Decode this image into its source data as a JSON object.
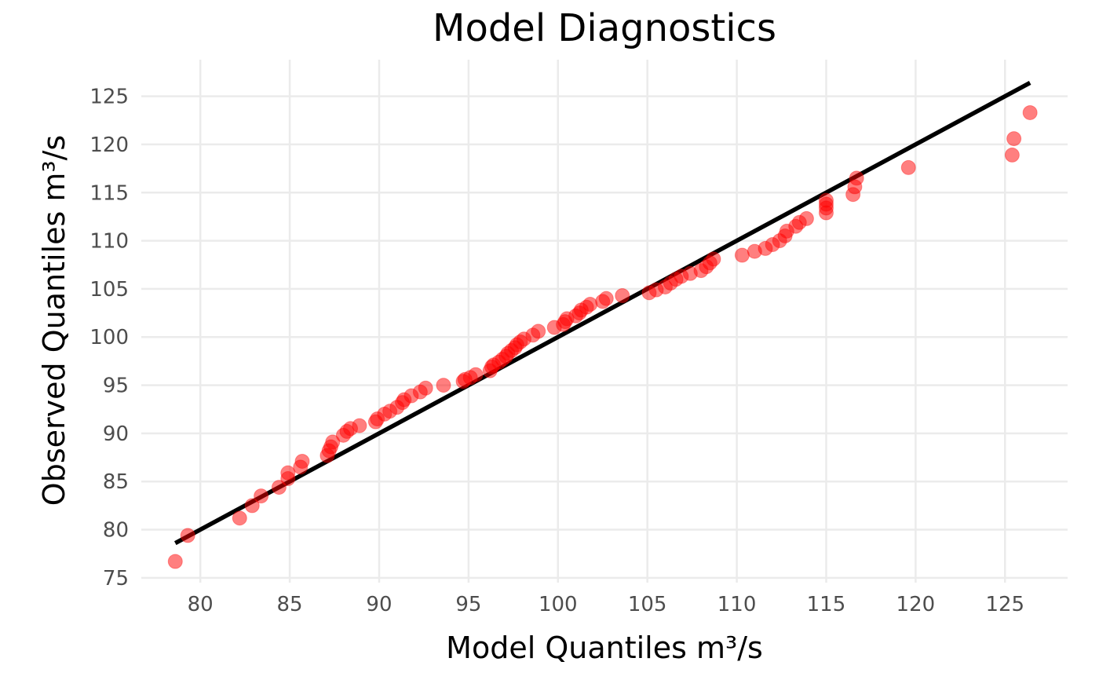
{
  "chart_data": {
    "type": "scatter",
    "title": "Model Diagnostics",
    "xlabel": "Model Quantiles m³/s",
    "ylabel": "Observed Quantiles m³/s",
    "xlim": [
      76.7,
      128.5
    ],
    "ylim": [
      74.5,
      128.8
    ],
    "xticks": [
      80,
      85,
      90,
      95,
      100,
      105,
      110,
      115,
      120,
      125
    ],
    "yticks": [
      75,
      80,
      85,
      90,
      95,
      100,
      105,
      110,
      115,
      120,
      125
    ],
    "grid": true,
    "legend": "none",
    "colors": {
      "points": "#ff0000",
      "reference_line": "#000000",
      "grid": "#ebebeb"
    },
    "reference_line": {
      "x": [
        78.6,
        126.4
      ],
      "y": [
        78.6,
        126.4
      ]
    },
    "points": [
      [
        78.6,
        76.7
      ],
      [
        79.3,
        79.4
      ],
      [
        82.2,
        81.2
      ],
      [
        82.9,
        82.5
      ],
      [
        83.4,
        83.5
      ],
      [
        84.4,
        84.4
      ],
      [
        84.9,
        85.3
      ],
      [
        84.9,
        85.9
      ],
      [
        85.6,
        86.5
      ],
      [
        85.7,
        87.1
      ],
      [
        87.1,
        87.7
      ],
      [
        87.2,
        88.2
      ],
      [
        87.3,
        88.6
      ],
      [
        87.4,
        89.1
      ],
      [
        88.0,
        89.8
      ],
      [
        88.2,
        90.2
      ],
      [
        88.4,
        90.5
      ],
      [
        88.9,
        90.8
      ],
      [
        89.8,
        91.2
      ],
      [
        89.9,
        91.5
      ],
      [
        90.3,
        92.0
      ],
      [
        90.6,
        92.3
      ],
      [
        91.0,
        92.7
      ],
      [
        91.3,
        93.2
      ],
      [
        91.4,
        93.5
      ],
      [
        91.8,
        93.9
      ],
      [
        92.3,
        94.3
      ],
      [
        92.6,
        94.7
      ],
      [
        93.6,
        95.0
      ],
      [
        94.7,
        95.4
      ],
      [
        94.8,
        95.6
      ],
      [
        95.1,
        95.8
      ],
      [
        95.4,
        96.1
      ],
      [
        96.2,
        96.5
      ],
      [
        96.3,
        96.9
      ],
      [
        96.4,
        97.1
      ],
      [
        96.7,
        97.4
      ],
      [
        96.9,
        97.7
      ],
      [
        97.1,
        98.0
      ],
      [
        97.2,
        98.3
      ],
      [
        97.4,
        98.6
      ],
      [
        97.6,
        98.9
      ],
      [
        97.7,
        99.2
      ],
      [
        97.9,
        99.5
      ],
      [
        98.1,
        99.8
      ],
      [
        98.6,
        100.2
      ],
      [
        98.9,
        100.6
      ],
      [
        99.8,
        101.0
      ],
      [
        100.3,
        101.3
      ],
      [
        100.4,
        101.6
      ],
      [
        100.5,
        101.9
      ],
      [
        101.0,
        102.2
      ],
      [
        101.2,
        102.5
      ],
      [
        101.3,
        102.8
      ],
      [
        101.6,
        103.1
      ],
      [
        101.8,
        103.4
      ],
      [
        102.5,
        103.7
      ],
      [
        102.7,
        104.0
      ],
      [
        103.6,
        104.3
      ],
      [
        105.1,
        104.6
      ],
      [
        105.5,
        104.9
      ],
      [
        106.0,
        105.2
      ],
      [
        106.3,
        105.6
      ],
      [
        106.6,
        106.0
      ],
      [
        106.9,
        106.3
      ],
      [
        107.4,
        106.6
      ],
      [
        108.0,
        106.9
      ],
      [
        108.3,
        107.3
      ],
      [
        108.5,
        107.7
      ],
      [
        108.7,
        108.1
      ],
      [
        110.3,
        108.5
      ],
      [
        111.0,
        108.9
      ],
      [
        111.6,
        109.2
      ],
      [
        112.0,
        109.6
      ],
      [
        112.4,
        110.0
      ],
      [
        112.7,
        110.5
      ],
      [
        112.8,
        111.0
      ],
      [
        113.3,
        111.5
      ],
      [
        113.5,
        111.9
      ],
      [
        113.9,
        112.3
      ],
      [
        115.0,
        112.9
      ],
      [
        115.0,
        113.4
      ],
      [
        115.0,
        113.8
      ],
      [
        115.0,
        114.2
      ],
      [
        116.5,
        114.8
      ],
      [
        116.6,
        115.6
      ],
      [
        116.7,
        116.5
      ],
      [
        119.6,
        117.6
      ],
      [
        125.4,
        118.9
      ],
      [
        125.5,
        120.6
      ],
      [
        126.4,
        123.3
      ]
    ]
  }
}
